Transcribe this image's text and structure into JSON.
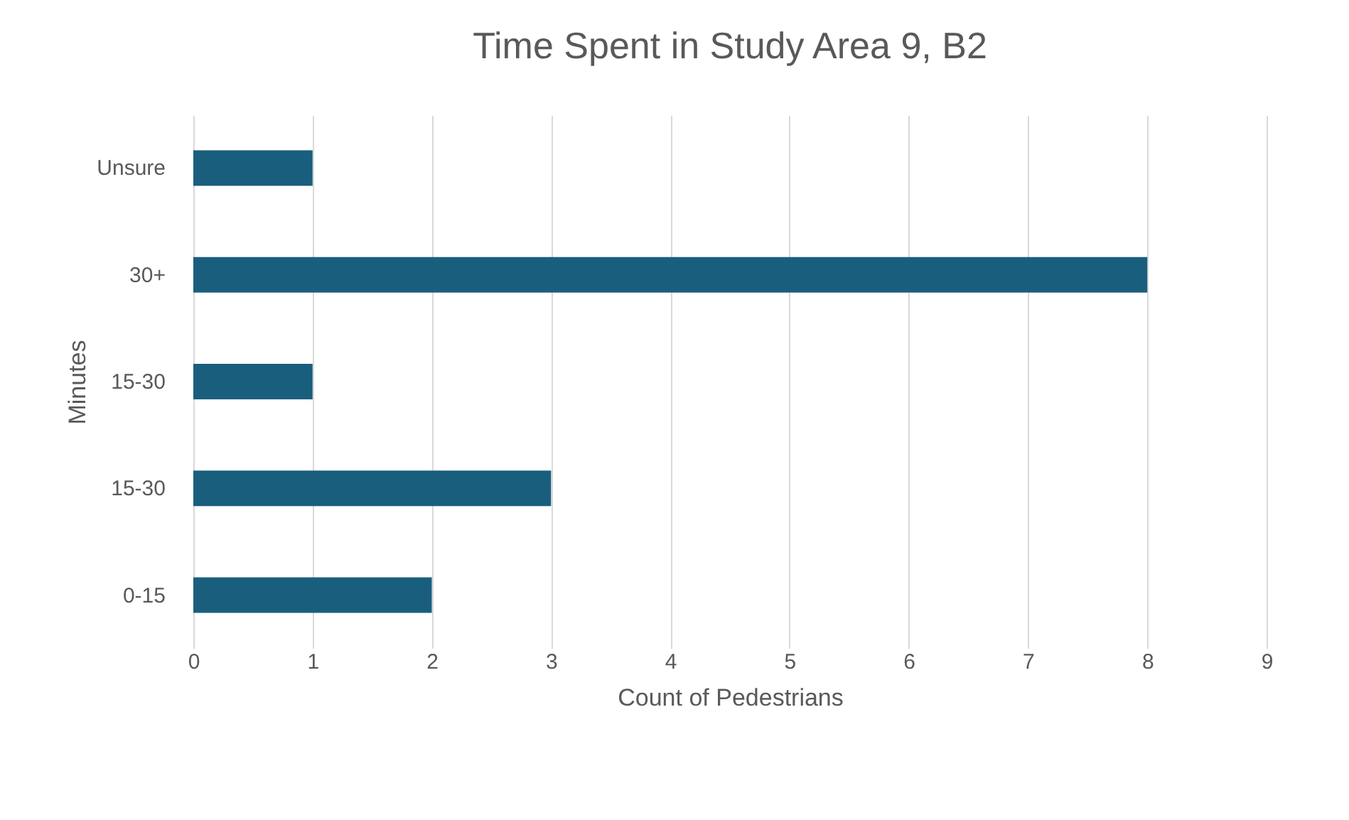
{
  "chart_data": {
    "type": "bar",
    "orientation": "horizontal",
    "title": "Time Spent in Study Area 9, B2",
    "xlabel": "Count of Pedestrians",
    "ylabel": "Minutes",
    "categories": [
      "Unsure",
      "30+",
      "15-30",
      "15-30",
      "0-15"
    ],
    "values": [
      1,
      8,
      1,
      3,
      2
    ],
    "color": "#1a5e7e",
    "xlim": [
      0,
      9
    ],
    "xticks": [
      0,
      1,
      2,
      3,
      4,
      5,
      6,
      7,
      8,
      9
    ],
    "grid": "x"
  }
}
